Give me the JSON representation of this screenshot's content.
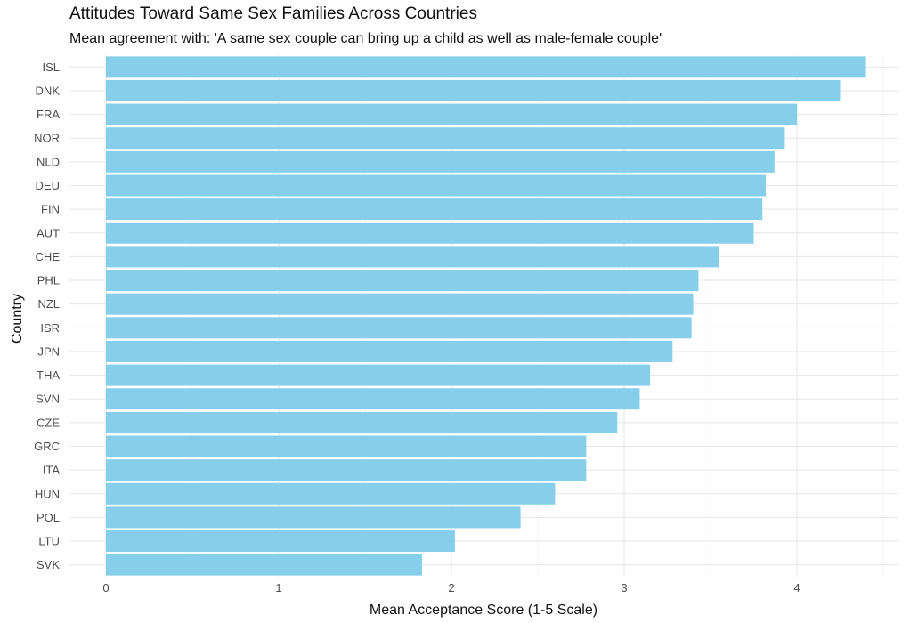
{
  "chart_data": {
    "type": "bar",
    "orientation": "horizontal",
    "title": "Attitudes Toward Same Sex Families Across Countries",
    "subtitle": "Mean agreement with: 'A same sex couple can bring up a child as well as male-female couple'",
    "xlabel": "Mean Acceptance Score (1-5 Scale)",
    "ylabel": "Country",
    "xlim": [
      0,
      4.5
    ],
    "xticks": [
      0,
      1,
      2,
      3,
      4
    ],
    "grid": true,
    "bar_color": "#87CEEB",
    "categories": [
      "ISL",
      "DNK",
      "FRA",
      "NOR",
      "NLD",
      "DEU",
      "FIN",
      "AUT",
      "CHE",
      "PHL",
      "NZL",
      "ISR",
      "JPN",
      "THA",
      "SVN",
      "CZE",
      "GRC",
      "ITA",
      "HUN",
      "POL",
      "LTU",
      "SVK"
    ],
    "values": [
      4.4,
      4.25,
      4.0,
      3.93,
      3.87,
      3.82,
      3.8,
      3.75,
      3.55,
      3.43,
      3.4,
      3.39,
      3.28,
      3.15,
      3.09,
      2.96,
      2.78,
      2.78,
      2.6,
      2.4,
      2.02,
      1.83
    ]
  }
}
